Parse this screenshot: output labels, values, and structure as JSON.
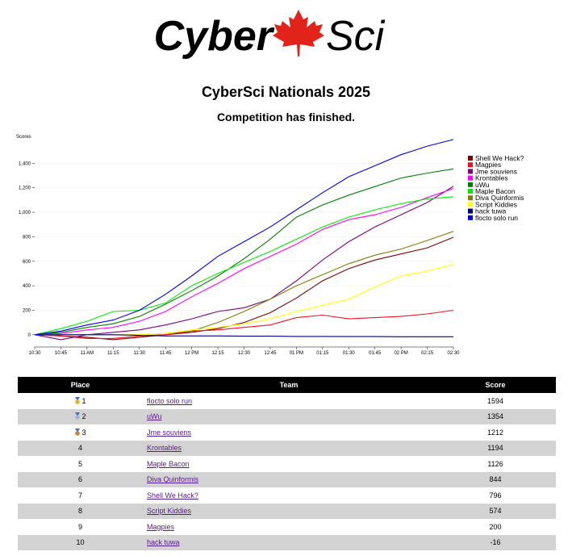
{
  "header": {
    "logo_left": "Cyber",
    "logo_right": "Sci",
    "title": "CyberSci Nationals 2025",
    "subtitle": "Competition has finished."
  },
  "colors": {
    "maple_leaf": "#e2231a",
    "table_header_bg": "#000000",
    "row_alt_bg": "#d3d3d3",
    "link": "#551a8b",
    "gold": "#e6b422",
    "silver": "#9fb7d6",
    "bronze": "#cd7f32"
  },
  "scoreboard": {
    "headers": {
      "place": "Place",
      "team": "Team",
      "score": "Score"
    },
    "rows": [
      {
        "place": "1",
        "medal": "gold-medal-icon",
        "team": "flocto solo run",
        "score": "1594"
      },
      {
        "place": "2",
        "medal": "silver-medal-icon",
        "team": "uWu",
        "score": "1354"
      },
      {
        "place": "3",
        "medal": "bronze-medal-icon",
        "team": "Jme souviens",
        "score": "1212"
      },
      {
        "place": "4",
        "medal": "",
        "team": "Krontables",
        "score": "1194"
      },
      {
        "place": "5",
        "medal": "",
        "team": "Maple Bacon",
        "score": "1126"
      },
      {
        "place": "6",
        "medal": "",
        "team": "Diva Quinformis",
        "score": "844"
      },
      {
        "place": "7",
        "medal": "",
        "team": "Shell We Hack?",
        "score": "796"
      },
      {
        "place": "8",
        "medal": "",
        "team": "Script Kiddies",
        "score": "574"
      },
      {
        "place": "9",
        "medal": "",
        "team": "Magpies",
        "score": "200"
      },
      {
        "place": "10",
        "medal": "",
        "team": "hack tuwa",
        "score": "-16"
      }
    ]
  },
  "chart_data": {
    "type": "line",
    "title": "",
    "xlabel": "",
    "ylabel": "Scores",
    "ylim": [
      -100,
      1600
    ],
    "yticks": [
      0,
      200,
      400,
      600,
      800,
      1000,
      1200,
      1400
    ],
    "ytick_labels": [
      "0",
      "200",
      "400",
      "600",
      "800",
      "1,000",
      "1,200",
      "1,400"
    ],
    "x_ticks": [
      "10:30",
      "10:45",
      "11 AM",
      "11:15",
      "11:30",
      "11:45",
      "12 PM",
      "12:15",
      "12:30",
      "12:45",
      "01 PM",
      "01:15",
      "01:30",
      "01:45",
      "02 PM",
      "02:15",
      "02:30"
    ],
    "x_minutes": [
      0,
      15,
      30,
      45,
      60,
      75,
      90,
      105,
      120,
      135,
      150,
      165,
      180,
      195,
      210,
      225,
      240
    ],
    "grid": "horizontal",
    "legend": "right",
    "series": [
      {
        "name": "Shell We Hack?",
        "color": "#800000",
        "points": [
          [
            0,
            0
          ],
          [
            15,
            -10
          ],
          [
            30,
            -20
          ],
          [
            45,
            -40
          ],
          [
            60,
            -20
          ],
          [
            75,
            0
          ],
          [
            90,
            20
          ],
          [
            105,
            50
          ],
          [
            120,
            100
          ],
          [
            135,
            180
          ],
          [
            150,
            300
          ],
          [
            165,
            440
          ],
          [
            180,
            540
          ],
          [
            195,
            610
          ],
          [
            210,
            660
          ],
          [
            225,
            710
          ],
          [
            240,
            796
          ]
        ]
      },
      {
        "name": "Magpies",
        "color": "#ee1122",
        "points": [
          [
            0,
            0
          ],
          [
            15,
            -10
          ],
          [
            30,
            -30
          ],
          [
            45,
            -30
          ],
          [
            60,
            -10
          ],
          [
            75,
            0
          ],
          [
            90,
            30
          ],
          [
            105,
            40
          ],
          [
            120,
            60
          ],
          [
            135,
            80
          ],
          [
            150,
            140
          ],
          [
            165,
            160
          ],
          [
            180,
            130
          ],
          [
            195,
            140
          ],
          [
            210,
            150
          ],
          [
            225,
            170
          ],
          [
            240,
            200
          ]
        ]
      },
      {
        "name": "Jme souviens",
        "color": "#800080",
        "points": [
          [
            0,
            0
          ],
          [
            15,
            -40
          ],
          [
            30,
            0
          ],
          [
            45,
            20
          ],
          [
            60,
            40
          ],
          [
            75,
            80
          ],
          [
            90,
            130
          ],
          [
            105,
            190
          ],
          [
            120,
            220
          ],
          [
            135,
            290
          ],
          [
            150,
            440
          ],
          [
            165,
            610
          ],
          [
            180,
            760
          ],
          [
            195,
            880
          ],
          [
            210,
            980
          ],
          [
            225,
            1080
          ],
          [
            240,
            1212
          ]
        ]
      },
      {
        "name": "Krontables",
        "color": "#ff00ff",
        "points": [
          [
            0,
            0
          ],
          [
            15,
            10
          ],
          [
            30,
            40
          ],
          [
            45,
            60
          ],
          [
            60,
            110
          ],
          [
            75,
            190
          ],
          [
            90,
            310
          ],
          [
            105,
            420
          ],
          [
            120,
            540
          ],
          [
            135,
            640
          ],
          [
            150,
            740
          ],
          [
            165,
            860
          ],
          [
            180,
            940
          ],
          [
            195,
            980
          ],
          [
            210,
            1040
          ],
          [
            225,
            1120
          ],
          [
            240,
            1194
          ]
        ]
      },
      {
        "name": "uWu",
        "color": "#008000",
        "points": [
          [
            0,
            0
          ],
          [
            15,
            20
          ],
          [
            30,
            60
          ],
          [
            45,
            90
          ],
          [
            60,
            150
          ],
          [
            75,
            250
          ],
          [
            90,
            360
          ],
          [
            105,
            480
          ],
          [
            120,
            620
          ],
          [
            135,
            780
          ],
          [
            150,
            960
          ],
          [
            165,
            1060
          ],
          [
            180,
            1140
          ],
          [
            195,
            1210
          ],
          [
            210,
            1280
          ],
          [
            225,
            1320
          ],
          [
            240,
            1354
          ]
        ]
      },
      {
        "name": "Maple Bacon",
        "color": "#00ee00",
        "points": [
          [
            0,
            0
          ],
          [
            15,
            50
          ],
          [
            30,
            110
          ],
          [
            45,
            190
          ],
          [
            60,
            200
          ],
          [
            75,
            260
          ],
          [
            90,
            400
          ],
          [
            105,
            500
          ],
          [
            120,
            590
          ],
          [
            135,
            680
          ],
          [
            150,
            780
          ],
          [
            165,
            880
          ],
          [
            180,
            960
          ],
          [
            195,
            1020
          ],
          [
            210,
            1070
          ],
          [
            225,
            1110
          ],
          [
            240,
            1126
          ]
        ]
      },
      {
        "name": "Diva Quinformis",
        "color": "#808000",
        "points": [
          [
            0,
            0
          ],
          [
            15,
            0
          ],
          [
            30,
            0
          ],
          [
            45,
            0
          ],
          [
            60,
            0
          ],
          [
            75,
            10
          ],
          [
            90,
            30
          ],
          [
            105,
            100
          ],
          [
            120,
            190
          ],
          [
            135,
            290
          ],
          [
            150,
            400
          ],
          [
            165,
            490
          ],
          [
            180,
            580
          ],
          [
            195,
            650
          ],
          [
            210,
            700
          ],
          [
            225,
            770
          ],
          [
            240,
            844
          ]
        ]
      },
      {
        "name": "Script Kiddies",
        "color": "#ffff00",
        "points": [
          [
            0,
            0
          ],
          [
            15,
            0
          ],
          [
            30,
            0
          ],
          [
            45,
            0
          ],
          [
            60,
            0
          ],
          [
            75,
            10
          ],
          [
            90,
            40
          ],
          [
            105,
            60
          ],
          [
            120,
            90
          ],
          [
            135,
            130
          ],
          [
            150,
            190
          ],
          [
            165,
            240
          ],
          [
            180,
            290
          ],
          [
            195,
            390
          ],
          [
            210,
            480
          ],
          [
            225,
            520
          ],
          [
            240,
            574
          ]
        ]
      },
      {
        "name": "hack tuwa",
        "color": "#000080",
        "points": [
          [
            0,
            0
          ],
          [
            15,
            0
          ],
          [
            30,
            0
          ],
          [
            45,
            0
          ],
          [
            60,
            -5
          ],
          [
            75,
            -10
          ],
          [
            90,
            -10
          ],
          [
            105,
            -10
          ],
          [
            120,
            -12
          ],
          [
            135,
            -12
          ],
          [
            150,
            -14
          ],
          [
            165,
            -14
          ],
          [
            180,
            -15
          ],
          [
            195,
            -15
          ],
          [
            210,
            -16
          ],
          [
            225,
            -16
          ],
          [
            240,
            -16
          ]
        ]
      },
      {
        "name": "flocto solo run",
        "color": "#0000ee",
        "points": [
          [
            0,
            0
          ],
          [
            15,
            30
          ],
          [
            30,
            80
          ],
          [
            45,
            120
          ],
          [
            60,
            200
          ],
          [
            75,
            330
          ],
          [
            90,
            480
          ],
          [
            105,
            640
          ],
          [
            120,
            760
          ],
          [
            135,
            880
          ],
          [
            150,
            1020
          ],
          [
            165,
            1160
          ],
          [
            180,
            1290
          ],
          [
            195,
            1380
          ],
          [
            210,
            1470
          ],
          [
            225,
            1540
          ],
          [
            240,
            1594
          ]
        ]
      }
    ]
  }
}
